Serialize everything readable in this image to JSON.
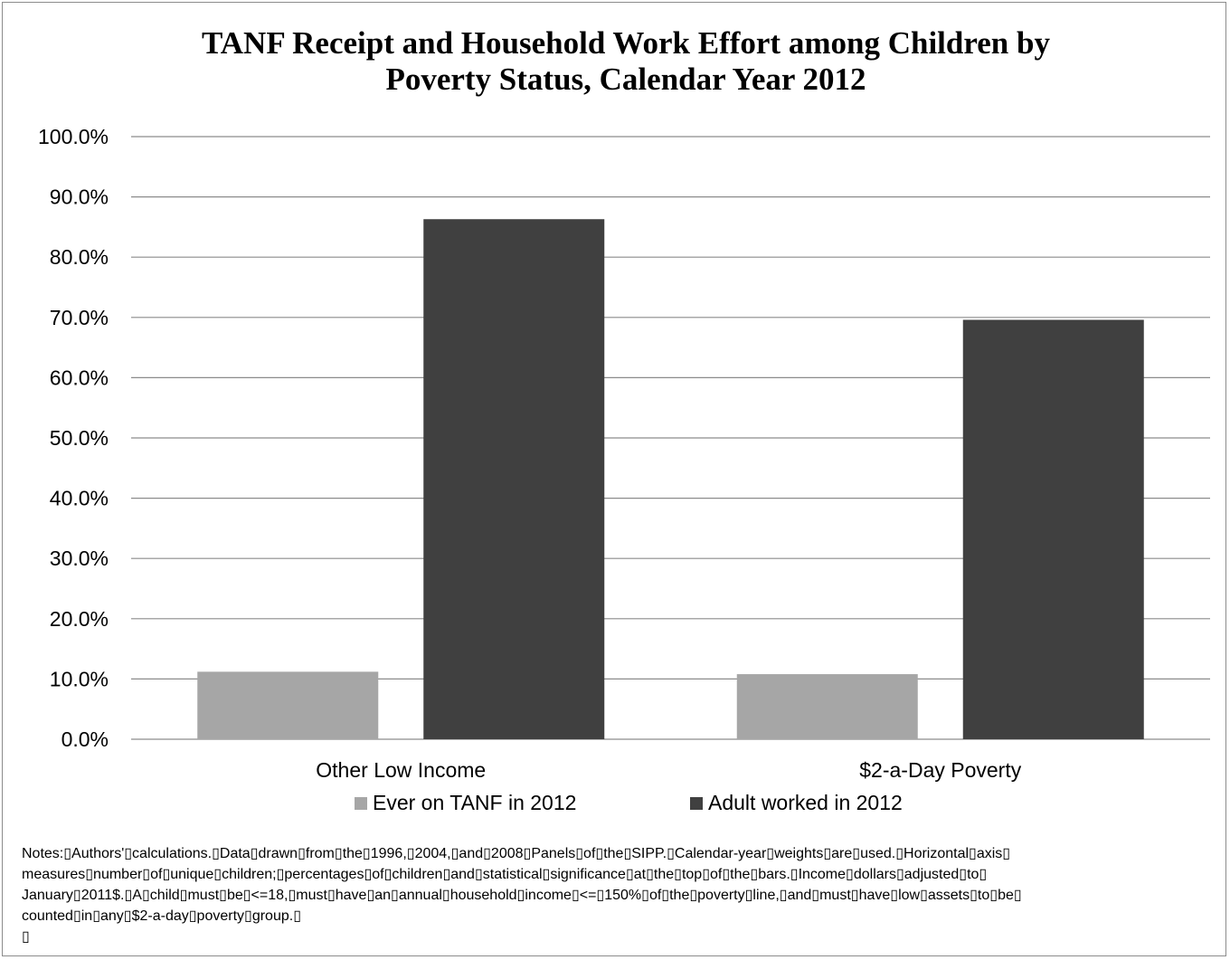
{
  "chart_data": {
    "type": "bar",
    "title": "TANF Receipt and Household Work Effort among Children by Poverty Status, Calendar Year 2012",
    "title_lines": [
      "TANF Receipt and Household Work Effort among Children by",
      "Poverty Status, Calendar Year 2012"
    ],
    "categories": [
      "Other Low Income",
      "$2-a-Day Poverty"
    ],
    "series": [
      {
        "name": "Ever on TANF in 2012",
        "values": [
          11.2,
          10.8
        ],
        "color": "#a6a6a6"
      },
      {
        "name": "Adult worked in 2012",
        "values": [
          86.3,
          69.6
        ],
        "color": "#404040"
      }
    ],
    "ylim": [
      0,
      100
    ],
    "yticks": [
      "0.0%",
      "10.0%",
      "20.0%",
      "30.0%",
      "40.0%",
      "50.0%",
      "60.0%",
      "70.0%",
      "80.0%",
      "90.0%",
      "100.0%"
    ],
    "grid": true,
    "legend_position": "bottom",
    "notes_lines": [
      "Notes:▯Authors'▯calculations.▯Data▯drawn▯from▯the▯1996,▯2004,▯and▯2008▯Panels▯of▯the▯SIPP.▯Calendar-year▯weights▯are▯used.▯Horizontal▯axis▯",
      "measures▯number▯of▯unique▯children;▯percentages▯of▯children▯and▯statistical▯significance▯at▯the▯top▯of▯the▯bars.▯Income▯dollars▯adjusted▯to▯",
      "January▯2011$.▯A▯child▯must▯be▯<=18,▯must▯have▯an▯annual▯household▯income▯<=▯150%▯of▯the▯poverty▯line,▯and▯must▯have▯low▯assets▯to▯be▯",
      "counted▯in▯any▯$2-a-day▯poverty▯group.▯",
      "▯"
    ]
  }
}
